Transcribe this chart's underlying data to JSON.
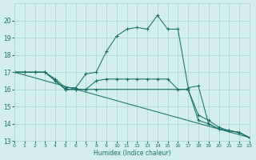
{
  "xlabel": "Humidex (Indice chaleur)",
  "bg_color": "#d4eeed",
  "grid_color": "#a8d4d0",
  "line_color": "#1a7068",
  "xlim": [
    0,
    23
  ],
  "ylim": [
    13,
    21
  ],
  "yticks": [
    13,
    14,
    15,
    16,
    17,
    18,
    19,
    20
  ],
  "xticks": [
    0,
    1,
    2,
    3,
    4,
    5,
    6,
    7,
    8,
    9,
    10,
    11,
    12,
    13,
    14,
    15,
    16,
    17,
    18,
    19,
    20,
    21,
    22,
    23
  ],
  "line1_x": [
    0,
    1,
    2,
    3,
    4,
    5,
    6,
    7,
    8,
    9,
    10,
    11,
    12,
    13,
    14,
    15,
    16,
    17,
    18,
    19,
    20,
    21,
    22,
    23
  ],
  "line1_y": [
    17.0,
    17.0,
    17.0,
    17.0,
    16.6,
    16.1,
    16.1,
    16.9,
    17.0,
    18.2,
    19.1,
    19.5,
    19.6,
    19.5,
    20.3,
    19.5,
    19.5,
    16.1,
    16.2,
    14.0,
    13.7,
    13.6,
    13.5,
    13.2
  ],
  "line2_x": [
    0,
    1,
    2,
    3,
    4,
    5,
    6,
    7,
    8,
    9,
    10,
    11,
    12,
    13,
    14,
    15,
    16,
    17,
    18,
    19,
    20,
    21,
    22,
    23
  ],
  "line2_y": [
    17.0,
    17.0,
    17.0,
    17.0,
    16.5,
    16.0,
    16.0,
    16.0,
    16.5,
    16.6,
    16.6,
    16.6,
    16.6,
    16.6,
    16.6,
    16.6,
    16.0,
    16.0,
    14.2,
    14.0,
    13.7,
    13.6,
    13.5,
    13.2
  ],
  "line3_x": [
    0,
    23
  ],
  "line3_y": [
    17.0,
    13.2
  ],
  "line4_x": [
    0,
    3,
    4,
    5,
    6,
    7,
    8,
    17,
    18,
    19,
    20,
    21,
    22,
    23
  ],
  "line4_y": [
    17.0,
    17.0,
    16.5,
    16.0,
    16.0,
    16.0,
    16.0,
    16.0,
    14.5,
    14.2,
    13.8,
    13.6,
    13.5,
    13.2
  ]
}
